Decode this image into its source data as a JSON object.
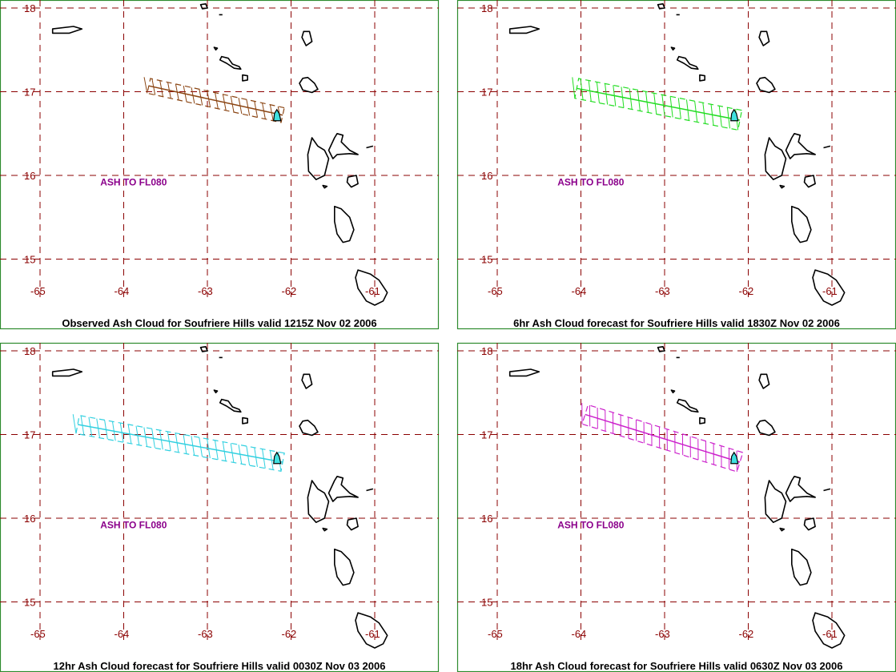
{
  "chart_data": [
    {
      "type": "map",
      "title": "Observed Ash Cloud for Soufriere  Hills valid 1215Z Nov 02 2006",
      "color": "#8b4513",
      "annotation": "ASH TO FL080",
      "xlim": [
        -65.3,
        -60.8
      ],
      "ylim": [
        14.6,
        18.1
      ],
      "x_ticks": [
        -65,
        -64,
        -63,
        -62,
        -61
      ],
      "y_ticks": [
        15,
        16,
        17,
        18
      ],
      "plume": {
        "start": [
          -62.1,
          16.72
        ],
        "end": [
          -63.7,
          17.07
        ],
        "half_width": 0.09
      }
    },
    {
      "type": "map",
      "title": "6hr Ash Cloud forecast for Soufriere  Hills valid 1830Z Nov 02 2006",
      "color": "#22dd22",
      "annotation": "ASH TO FL080",
      "xlim": [
        -65.3,
        -60.8
      ],
      "ylim": [
        14.6,
        18.1
      ],
      "x_ticks": [
        -65,
        -64,
        -63,
        -62,
        -61
      ],
      "y_ticks": [
        15,
        16,
        17,
        18
      ],
      "plume": {
        "start": [
          -62.1,
          16.66
        ],
        "end": [
          -64.05,
          17.04
        ],
        "half_width": 0.12
      }
    },
    {
      "type": "map",
      "title": "12hr Ash Cloud forecast for Soufriere  Hills valid 0030Z Nov 03 2006",
      "color": "#30d0e0",
      "annotation": "ASH TO FL080",
      "xlim": [
        -65.3,
        -60.8
      ],
      "ylim": [
        14.6,
        18.1
      ],
      "x_ticks": [
        -65,
        -64,
        -63,
        -62,
        -61
      ],
      "y_ticks": [
        15,
        16,
        17,
        18
      ],
      "plume": {
        "start": [
          -62.1,
          16.67
        ],
        "end": [
          -64.55,
          17.12
        ],
        "half_width": 0.11
      }
    },
    {
      "type": "map",
      "title": "18hr Ash Cloud forecast for Soufriere  Hills valid 0630Z Nov 03 2006",
      "color": "#cc22cc",
      "annotation": "ASH TO FL080",
      "xlim": [
        -65.3,
        -60.8
      ],
      "ylim": [
        14.6,
        18.1
      ],
      "x_ticks": [
        -65,
        -64,
        -63,
        -62,
        -61
      ],
      "y_ticks": [
        15,
        16,
        17,
        18
      ],
      "plume": {
        "start": [
          -62.1,
          16.67
        ],
        "end": [
          -63.95,
          17.24
        ],
        "half_width": 0.12
      }
    }
  ]
}
